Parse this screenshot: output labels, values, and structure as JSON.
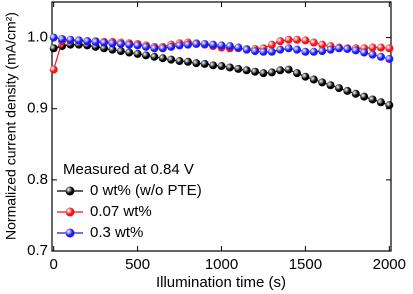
{
  "chart_data": {
    "type": "line",
    "xlabel": "Illumination  time (s)",
    "ylabel": "Normalized  current density (mA/cm²)",
    "legend_title": "Measured at 0.84 V",
    "legend_position": "lower left",
    "x": [
      0,
      50,
      100,
      150,
      200,
      250,
      300,
      350,
      400,
      450,
      500,
      550,
      600,
      650,
      700,
      750,
      800,
      850,
      900,
      950,
      1000,
      1050,
      1100,
      1150,
      1200,
      1250,
      1300,
      1350,
      1400,
      1450,
      1500,
      1550,
      1600,
      1650,
      1700,
      1750,
      1800,
      1850,
      1900,
      1950,
      2000
    ],
    "series": [
      {
        "name": "0 wt% (w/o PTE)",
        "color": "#000000",
        "values": [
          0.985,
          0.988,
          0.99,
          0.99,
          0.989,
          0.987,
          0.985,
          0.983,
          0.981,
          0.979,
          0.977,
          0.975,
          0.973,
          0.971,
          0.969,
          0.967,
          0.966,
          0.964,
          0.963,
          0.961,
          0.96,
          0.958,
          0.956,
          0.954,
          0.952,
          0.95,
          0.951,
          0.954,
          0.955,
          0.95,
          0.945,
          0.941,
          0.937,
          0.933,
          0.929,
          0.925,
          0.921,
          0.917,
          0.913,
          0.909,
          0.905
        ]
      },
      {
        "name": "0.07 wt%",
        "color": "#e8161b",
        "values": [
          0.955,
          0.995,
          0.996,
          0.996,
          0.995,
          0.995,
          0.994,
          0.994,
          0.993,
          0.992,
          0.991,
          0.989,
          0.987,
          0.987,
          0.99,
          0.992,
          0.993,
          0.992,
          0.99,
          0.988,
          0.986,
          0.985,
          0.985,
          0.984,
          0.984,
          0.985,
          0.99,
          0.995,
          0.997,
          0.997,
          0.996,
          0.993,
          0.99,
          0.988,
          0.986,
          0.985,
          0.985,
          0.985,
          0.986,
          0.986,
          0.985
        ]
      },
      {
        "name": "0.3 wt%",
        "color": "#1a1aee",
        "values": [
          1.0,
          0.998,
          0.997,
          0.996,
          0.995,
          0.994,
          0.993,
          0.992,
          0.991,
          0.99,
          0.989,
          0.987,
          0.985,
          0.985,
          0.987,
          0.989,
          0.99,
          0.991,
          0.991,
          0.99,
          0.989,
          0.988,
          0.986,
          0.983,
          0.981,
          0.98,
          0.98,
          0.983,
          0.985,
          0.983,
          0.98,
          0.98,
          0.981,
          0.983,
          0.985,
          0.984,
          0.982,
          0.979,
          0.976,
          0.973,
          0.97
        ]
      }
    ],
    "xlim": [
      -10,
      2010
    ],
    "xticks": [
      0,
      500,
      1000,
      1500,
      2000
    ],
    "ylim": [
      0.7,
      1.05
    ],
    "yticks": [
      0.7,
      0.8,
      0.9,
      {
        "value": 1,
        "label": "1.0"
      }
    ]
  }
}
